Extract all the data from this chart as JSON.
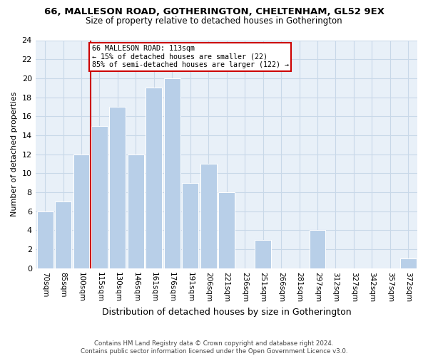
{
  "title_line1": "66, MALLESON ROAD, GOTHERINGTON, CHELTENHAM, GL52 9EX",
  "title_line2": "Size of property relative to detached houses in Gotherington",
  "xlabel": "Distribution of detached houses by size in Gotherington",
  "ylabel": "Number of detached properties",
  "bar_labels": [
    "70sqm",
    "85sqm",
    "100sqm",
    "115sqm",
    "130sqm",
    "146sqm",
    "161sqm",
    "176sqm",
    "191sqm",
    "206sqm",
    "221sqm",
    "236sqm",
    "251sqm",
    "266sqm",
    "281sqm",
    "297sqm",
    "312sqm",
    "327sqm",
    "342sqm",
    "357sqm",
    "372sqm"
  ],
  "bar_values": [
    6,
    7,
    12,
    15,
    17,
    12,
    19,
    20,
    9,
    11,
    8,
    0,
    3,
    0,
    0,
    4,
    0,
    0,
    0,
    0,
    1
  ],
  "bar_color": "#b8cfe8",
  "bar_edge_color": "#ffffff",
  "vline_index": 3,
  "annotation_line1": "66 MALLESON ROAD: 113sqm",
  "annotation_line2": "← 15% of detached houses are smaller (22)",
  "annotation_line3": "85% of semi-detached houses are larger (122) →",
  "annotation_box_color": "#ffffff",
  "annotation_box_edge": "#cc0000",
  "vline_color": "#cc0000",
  "footnote": "Contains HM Land Registry data © Crown copyright and database right 2024.\nContains public sector information licensed under the Open Government Licence v3.0.",
  "ylim": [
    0,
    24
  ],
  "yticks": [
    0,
    2,
    4,
    6,
    8,
    10,
    12,
    14,
    16,
    18,
    20,
    22,
    24
  ],
  "grid_color": "#c8d8e8",
  "bg_color": "#e8f0f8",
  "fig_bg_color": "#ffffff"
}
